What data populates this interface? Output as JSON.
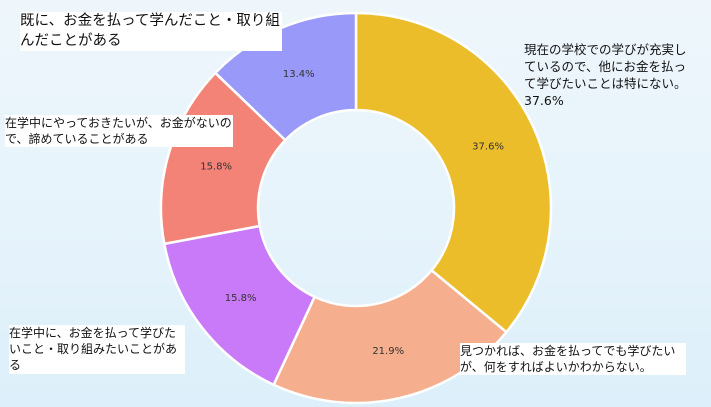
{
  "chart_data": {
    "type": "pie",
    "donut": true,
    "slices": [
      {
        "label": "現在の学校での学びが充実しているので、他にお金を払って学びたいことは特にない。37.6%",
        "value": 37.6,
        "display": "37.6%",
        "color": "#ebbd2a"
      },
      {
        "label": "見つかれば、お金を払ってでも学びたいが、何をすればよいかわからない。",
        "value": 21.9,
        "display": "21.9%",
        "color": "#f5ae8e"
      },
      {
        "label": "在学中に、お金を払って学びたいこと・取り組みたいことがある",
        "value": 15.8,
        "display": "15.8%",
        "color": "#c97af8"
      },
      {
        "label": "在学中にやっておきたいが、お金がないので、諦めていることがある",
        "value": 15.8,
        "display": "15.8%",
        "color": "#f38376"
      },
      {
        "label": "既に、お金を払って学んだこと・取り組んだことがある",
        "value": 13.4,
        "display": "13.4%",
        "color": "#9999f9"
      }
    ]
  }
}
